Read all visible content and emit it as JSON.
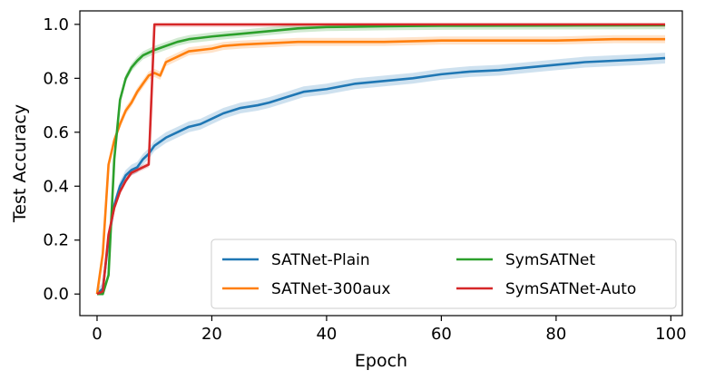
{
  "chart_data": {
    "type": "line",
    "xlabel": "Epoch",
    "ylabel": "Test Accuracy",
    "xlim": [
      -3,
      102
    ],
    "ylim": [
      -0.08,
      1.05
    ],
    "xticks": [
      0,
      20,
      40,
      60,
      80,
      100
    ],
    "yticks": [
      0.0,
      0.2,
      0.4,
      0.6,
      0.8,
      1.0
    ],
    "xtick_labels": [
      "0",
      "20",
      "40",
      "60",
      "80",
      "100"
    ],
    "ytick_labels": [
      "0.0",
      "0.2",
      "0.4",
      "0.6",
      "0.8",
      "1.0"
    ],
    "grid": false,
    "legend": {
      "placement": "lower-right",
      "columns": 2
    },
    "series": [
      {
        "name": "SATNet-Plain",
        "color": "#1f77b4",
        "band": 0.02,
        "points": [
          [
            0,
            0.0
          ],
          [
            1,
            0.02
          ],
          [
            2,
            0.2
          ],
          [
            3,
            0.33
          ],
          [
            4,
            0.4
          ],
          [
            5,
            0.44
          ],
          [
            6,
            0.46
          ],
          [
            7,
            0.47
          ],
          [
            8,
            0.5
          ],
          [
            9,
            0.52
          ],
          [
            10,
            0.55
          ],
          [
            12,
            0.58
          ],
          [
            14,
            0.6
          ],
          [
            16,
            0.62
          ],
          [
            18,
            0.63
          ],
          [
            20,
            0.65
          ],
          [
            22,
            0.67
          ],
          [
            25,
            0.69
          ],
          [
            28,
            0.7
          ],
          [
            30,
            0.71
          ],
          [
            33,
            0.73
          ],
          [
            36,
            0.75
          ],
          [
            40,
            0.76
          ],
          [
            45,
            0.78
          ],
          [
            50,
            0.79
          ],
          [
            55,
            0.8
          ],
          [
            60,
            0.815
          ],
          [
            65,
            0.825
          ],
          [
            70,
            0.83
          ],
          [
            75,
            0.84
          ],
          [
            80,
            0.85
          ],
          [
            85,
            0.86
          ],
          [
            90,
            0.865
          ],
          [
            95,
            0.87
          ],
          [
            99,
            0.875
          ]
        ]
      },
      {
        "name": "SATNet-300aux",
        "color": "#ff7f0e",
        "band": 0.015,
        "points": [
          [
            0,
            0.0
          ],
          [
            1,
            0.15
          ],
          [
            2,
            0.48
          ],
          [
            3,
            0.57
          ],
          [
            4,
            0.63
          ],
          [
            5,
            0.68
          ],
          [
            6,
            0.71
          ],
          [
            7,
            0.75
          ],
          [
            8,
            0.78
          ],
          [
            9,
            0.81
          ],
          [
            10,
            0.82
          ],
          [
            11,
            0.81
          ],
          [
            12,
            0.86
          ],
          [
            14,
            0.88
          ],
          [
            16,
            0.9
          ],
          [
            18,
            0.905
          ],
          [
            20,
            0.91
          ],
          [
            22,
            0.92
          ],
          [
            25,
            0.925
          ],
          [
            30,
            0.93
          ],
          [
            35,
            0.935
          ],
          [
            40,
            0.935
          ],
          [
            50,
            0.935
          ],
          [
            60,
            0.94
          ],
          [
            70,
            0.94
          ],
          [
            80,
            0.94
          ],
          [
            90,
            0.945
          ],
          [
            99,
            0.945
          ]
        ]
      },
      {
        "name": "SymSATNet",
        "color": "#2ca02c",
        "band": 0.015,
        "points": [
          [
            0,
            0.0
          ],
          [
            1,
            0.0
          ],
          [
            2,
            0.07
          ],
          [
            3,
            0.5
          ],
          [
            4,
            0.72
          ],
          [
            5,
            0.8
          ],
          [
            6,
            0.84
          ],
          [
            7,
            0.865
          ],
          [
            8,
            0.885
          ],
          [
            9,
            0.895
          ],
          [
            10,
            0.905
          ],
          [
            12,
            0.92
          ],
          [
            14,
            0.935
          ],
          [
            16,
            0.945
          ],
          [
            18,
            0.95
          ],
          [
            20,
            0.955
          ],
          [
            25,
            0.965
          ],
          [
            30,
            0.975
          ],
          [
            35,
            0.985
          ],
          [
            40,
            0.99
          ],
          [
            50,
            0.993
          ],
          [
            60,
            0.995
          ],
          [
            80,
            0.996
          ],
          [
            99,
            0.997
          ]
        ]
      },
      {
        "name": "SymSATNet-Auto",
        "color": "#d62728",
        "band": 0.01,
        "points": [
          [
            0,
            0.0
          ],
          [
            1,
            0.01
          ],
          [
            2,
            0.22
          ],
          [
            3,
            0.32
          ],
          [
            4,
            0.38
          ],
          [
            5,
            0.42
          ],
          [
            6,
            0.45
          ],
          [
            7,
            0.46
          ],
          [
            8,
            0.47
          ],
          [
            9,
            0.48
          ],
          [
            10,
            1.0
          ],
          [
            12,
            1.0
          ],
          [
            20,
            1.0
          ],
          [
            40,
            1.0
          ],
          [
            60,
            1.0
          ],
          [
            80,
            1.0
          ],
          [
            99,
            1.0
          ]
        ]
      }
    ]
  }
}
